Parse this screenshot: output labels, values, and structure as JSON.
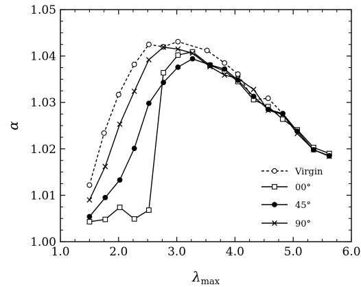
{
  "chart_data": {
    "type": "line",
    "xlabel": "λ",
    "xlabel_sub": "max",
    "ylabel": "α",
    "xlim": [
      1.0,
      6.0
    ],
    "ylim": [
      1.0,
      1.05
    ],
    "xticks": [
      "1.0",
      "2.0",
      "3.0",
      "4.0",
      "5.0",
      "6.0"
    ],
    "yticks": [
      "1.00",
      "1.01",
      "1.02",
      "1.03",
      "1.04",
      "1.05"
    ],
    "grid": false,
    "legend_position": "lower-right",
    "series": [
      {
        "name": "Virgin",
        "line": "dashed",
        "marker": "open-circle",
        "x": [
          1.5,
          1.75,
          2.0,
          2.27,
          2.52,
          2.77,
          3.02,
          3.52,
          3.82,
          4.05,
          4.32,
          4.57,
          4.82,
          5.07,
          5.35,
          5.62
        ],
        "y": [
          1.0122,
          1.0234,
          1.0317,
          1.0382,
          1.0425,
          1.042,
          1.0431,
          1.0412,
          1.0385,
          1.0361,
          1.0306,
          1.0309,
          1.0276,
          1.0238,
          1.0198,
          1.0185
        ]
      },
      {
        "name": "00°",
        "line": "solid",
        "marker": "open-square",
        "x": [
          1.5,
          1.77,
          2.02,
          2.27,
          2.52,
          2.77,
          3.02,
          3.27,
          3.57,
          3.82,
          4.05,
          4.32,
          4.57,
          4.82,
          5.07,
          5.35,
          5.62
        ],
        "y": [
          1.0043,
          1.0048,
          1.0074,
          1.0049,
          1.0068,
          1.0364,
          1.0402,
          1.0409,
          1.038,
          1.0368,
          1.0345,
          1.0306,
          1.0291,
          1.0264,
          1.0241,
          1.0203,
          1.019
        ]
      },
      {
        "name": "45°",
        "line": "solid",
        "marker": "filled-circle",
        "x": [
          1.5,
          1.77,
          2.02,
          2.27,
          2.52,
          2.77,
          3.02,
          3.27,
          3.57,
          3.82,
          4.05,
          4.32,
          4.57,
          4.82,
          5.07,
          5.35,
          5.62
        ],
        "y": [
          1.0054,
          1.0095,
          1.0133,
          1.0201,
          1.0298,
          1.0343,
          1.0376,
          1.0394,
          1.0381,
          1.0372,
          1.0348,
          1.0313,
          1.0285,
          1.0276,
          1.0238,
          1.0198,
          1.0185
        ]
      },
      {
        "name": "90°",
        "line": "solid",
        "marker": "cross",
        "x": [
          1.5,
          1.77,
          2.02,
          2.27,
          2.52,
          2.77,
          3.02,
          3.27,
          3.57,
          3.82,
          4.05,
          4.32,
          4.57,
          4.82,
          5.07,
          5.35,
          5.62
        ],
        "y": [
          1.009,
          1.0162,
          1.0253,
          1.0324,
          1.0392,
          1.0419,
          1.0415,
          1.0406,
          1.0377,
          1.0359,
          1.0352,
          1.0328,
          1.0283,
          1.0274,
          1.0233,
          1.0198,
          1.0184
        ]
      }
    ]
  }
}
